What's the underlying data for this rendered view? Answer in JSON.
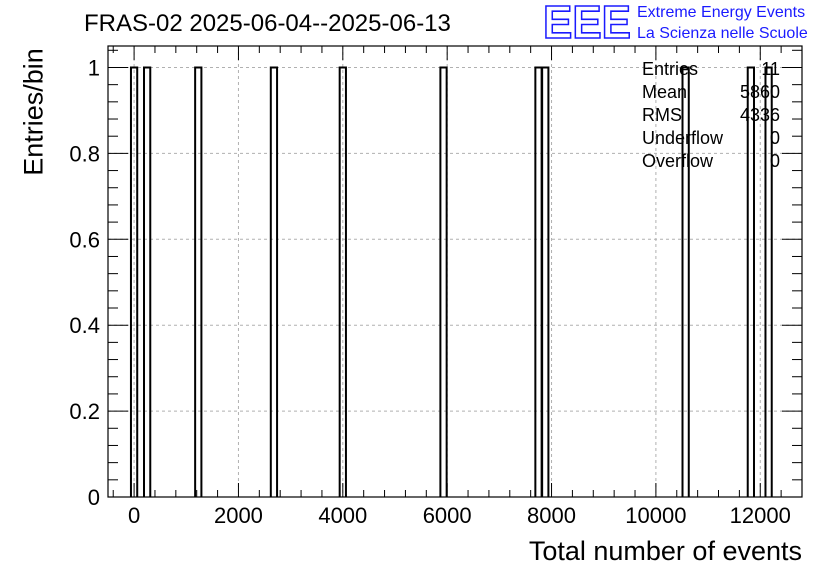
{
  "title": "FRAS-02 2025-06-04--2025-06-13",
  "logo": {
    "mark": "EEE",
    "line1": "Extreme Energy Events",
    "line2": "La Scienza nelle Scuole",
    "color": "#1a1aff"
  },
  "stats": [
    {
      "label": "Entries",
      "value": "11"
    },
    {
      "label": "Mean",
      "value": "5860"
    },
    {
      "label": "RMS",
      "value": "4336"
    },
    {
      "label": "Underflow",
      "value": "0"
    },
    {
      "label": "Overflow",
      "value": "0"
    }
  ],
  "chart_data": {
    "type": "bar",
    "title": "FRAS-02 2025-06-04--2025-06-13",
    "xlabel": "Total number of events",
    "ylabel": "Entries/bin",
    "xlim": [
      -500,
      12800
    ],
    "ylim": [
      0,
      1.05
    ],
    "bin_width": 120,
    "bins": [
      {
        "x": 0,
        "value": 1
      },
      {
        "x": 250,
        "value": 1
      },
      {
        "x": 1230,
        "value": 1
      },
      {
        "x": 2680,
        "value": 1
      },
      {
        "x": 4000,
        "value": 1
      },
      {
        "x": 5930,
        "value": 1
      },
      {
        "x": 7750,
        "value": 1
      },
      {
        "x": 7880,
        "value": 1
      },
      {
        "x": 10570,
        "value": 1
      },
      {
        "x": 11820,
        "value": 1
      },
      {
        "x": 12160,
        "value": 1
      }
    ],
    "x_ticks": [
      0,
      2000,
      4000,
      6000,
      8000,
      10000,
      12000
    ],
    "x_tick_labels": [
      "0",
      "2000",
      "4000",
      "6000",
      "8000",
      "10000",
      "12000"
    ],
    "y_ticks": [
      0,
      0.2,
      0.4,
      0.6,
      0.8,
      1
    ],
    "y_tick_labels": [
      "0",
      "0.2",
      "0.4",
      "0.6",
      "0.8",
      "1"
    ],
    "grid": true,
    "legend": "none"
  }
}
